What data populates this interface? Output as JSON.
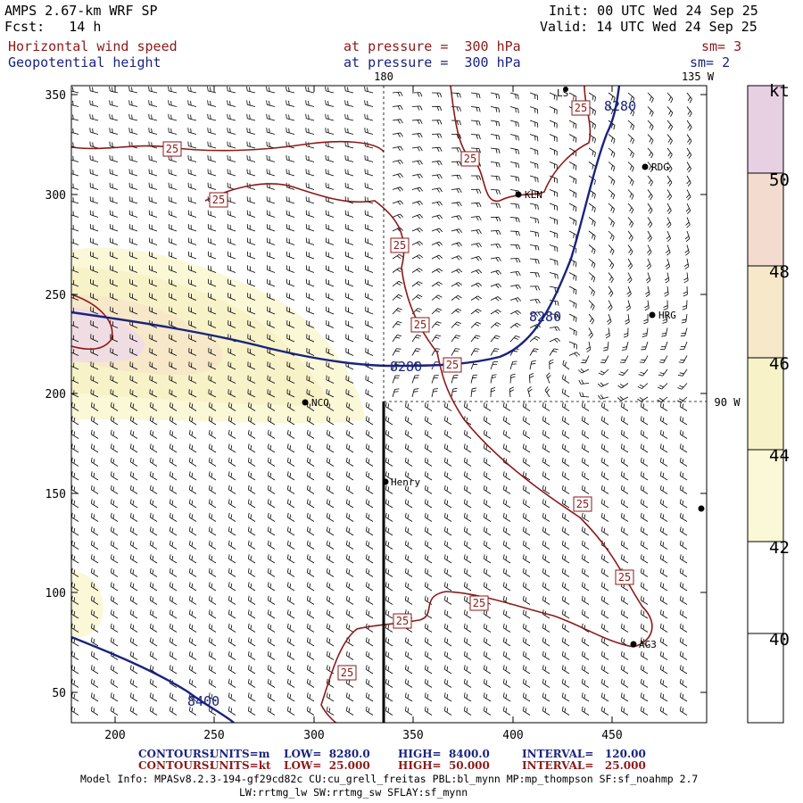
{
  "header": {
    "model": "AMPS 2.67-km WRF SP",
    "init": "Init: 00 UTC Wed 24 Sep 25",
    "forecast": "Fcst:   14 h",
    "valid": "Valid: 14 UTC Wed 24 Sep 25",
    "field1": "Horizontal wind speed",
    "field1_level": "at pressure =  300 hPa",
    "field1_sm": "sm= 3",
    "field2": "Geopotential height",
    "field2_level": "at pressure =  300 hPa",
    "field2_sm": "sm= 2"
  },
  "grid_labels": {
    "lon_180": "180",
    "lon_135w": "135 W",
    "lon_90w": "90 W"
  },
  "axes": {
    "x_ticks": [
      "200",
      "250",
      "300",
      "350",
      "400",
      "450"
    ],
    "y_ticks": [
      "350",
      "300",
      "250",
      "200",
      "150",
      "100",
      "50"
    ]
  },
  "colorbar": {
    "unit": "kt",
    "levels": [
      "50",
      "48",
      "46",
      "44",
      "42",
      "40"
    ],
    "colors": [
      "#e8d0e3",
      "#f3dccf",
      "#f6e8c8",
      "#f8f2c8",
      "#fbf8d8",
      "#ffffff"
    ]
  },
  "stations": [
    {
      "name": "RDG"
    },
    {
      "name": "KLN"
    },
    {
      "name": "HRG"
    },
    {
      "name": "NCO"
    },
    {
      "name": "Henry"
    },
    {
      "name": "AG3"
    },
    {
      "name": "LS"
    }
  ],
  "contour_labels": {
    "height": [
      "8280",
      "8280",
      "8280",
      "8400"
    ],
    "speed": [
      "25",
      "25",
      "25",
      "25",
      "25",
      "25",
      "25",
      "25",
      "25",
      "25",
      "25",
      "25"
    ]
  },
  "footer": {
    "c1_label": "CONTOURS:",
    "c1_units": "UNITS=m",
    "c1_low": "LOW=  8280.0",
    "c1_high": "HIGH=  8400.0",
    "c1_interval": "INTERVAL=   120.00",
    "c2_label": "CONTOURS:",
    "c2_units": "UNITS=kt",
    "c2_low": "LOW=  25.000",
    "c2_high": "HIGH=  50.000",
    "c2_interval": "INTERVAL=   25.000",
    "model_info": "Model Info: MPASv8.2.3-194-gf29cd82c CU:cu_grell_freitas PBL:bl_mynn MP:mp_thompson SF:sf_noahmp 2.7",
    "model_info2": "LW:rrtmg_lw SW:rrtmg_sw SFLAY:sf_mynn"
  },
  "colors": {
    "speed_contour": "#8b1a1a",
    "height_contour": "#1a237e"
  }
}
